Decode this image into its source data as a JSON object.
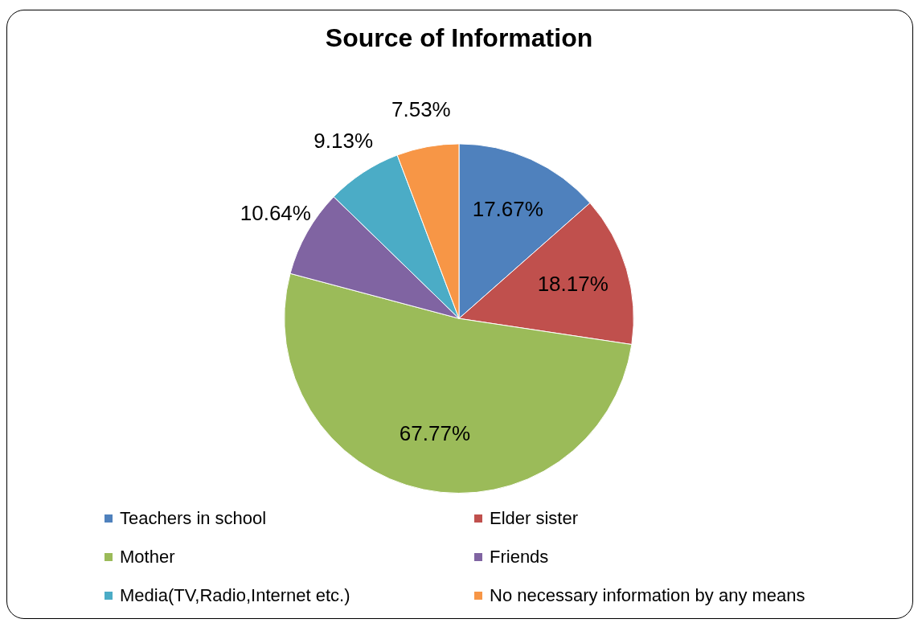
{
  "chart_data": {
    "type": "pie",
    "title": "Source of Information",
    "categories": [
      "Teachers in school",
      "Elder sister",
      "Mother",
      "Friends",
      "Media(TV,Radio,Internet etc.)",
      "No necessary information by any means"
    ],
    "values": [
      17.67,
      18.17,
      67.77,
      10.64,
      9.13,
      7.53
    ],
    "colors": [
      "#4f81bd",
      "#c0504d",
      "#9bbb59",
      "#8064a2",
      "#4bacc6",
      "#f79646"
    ],
    "value_labels": [
      "17.67%",
      "18.17%",
      "67.77%",
      "10.64%",
      "9.13%",
      "7.53%"
    ],
    "legend": "bottom"
  }
}
